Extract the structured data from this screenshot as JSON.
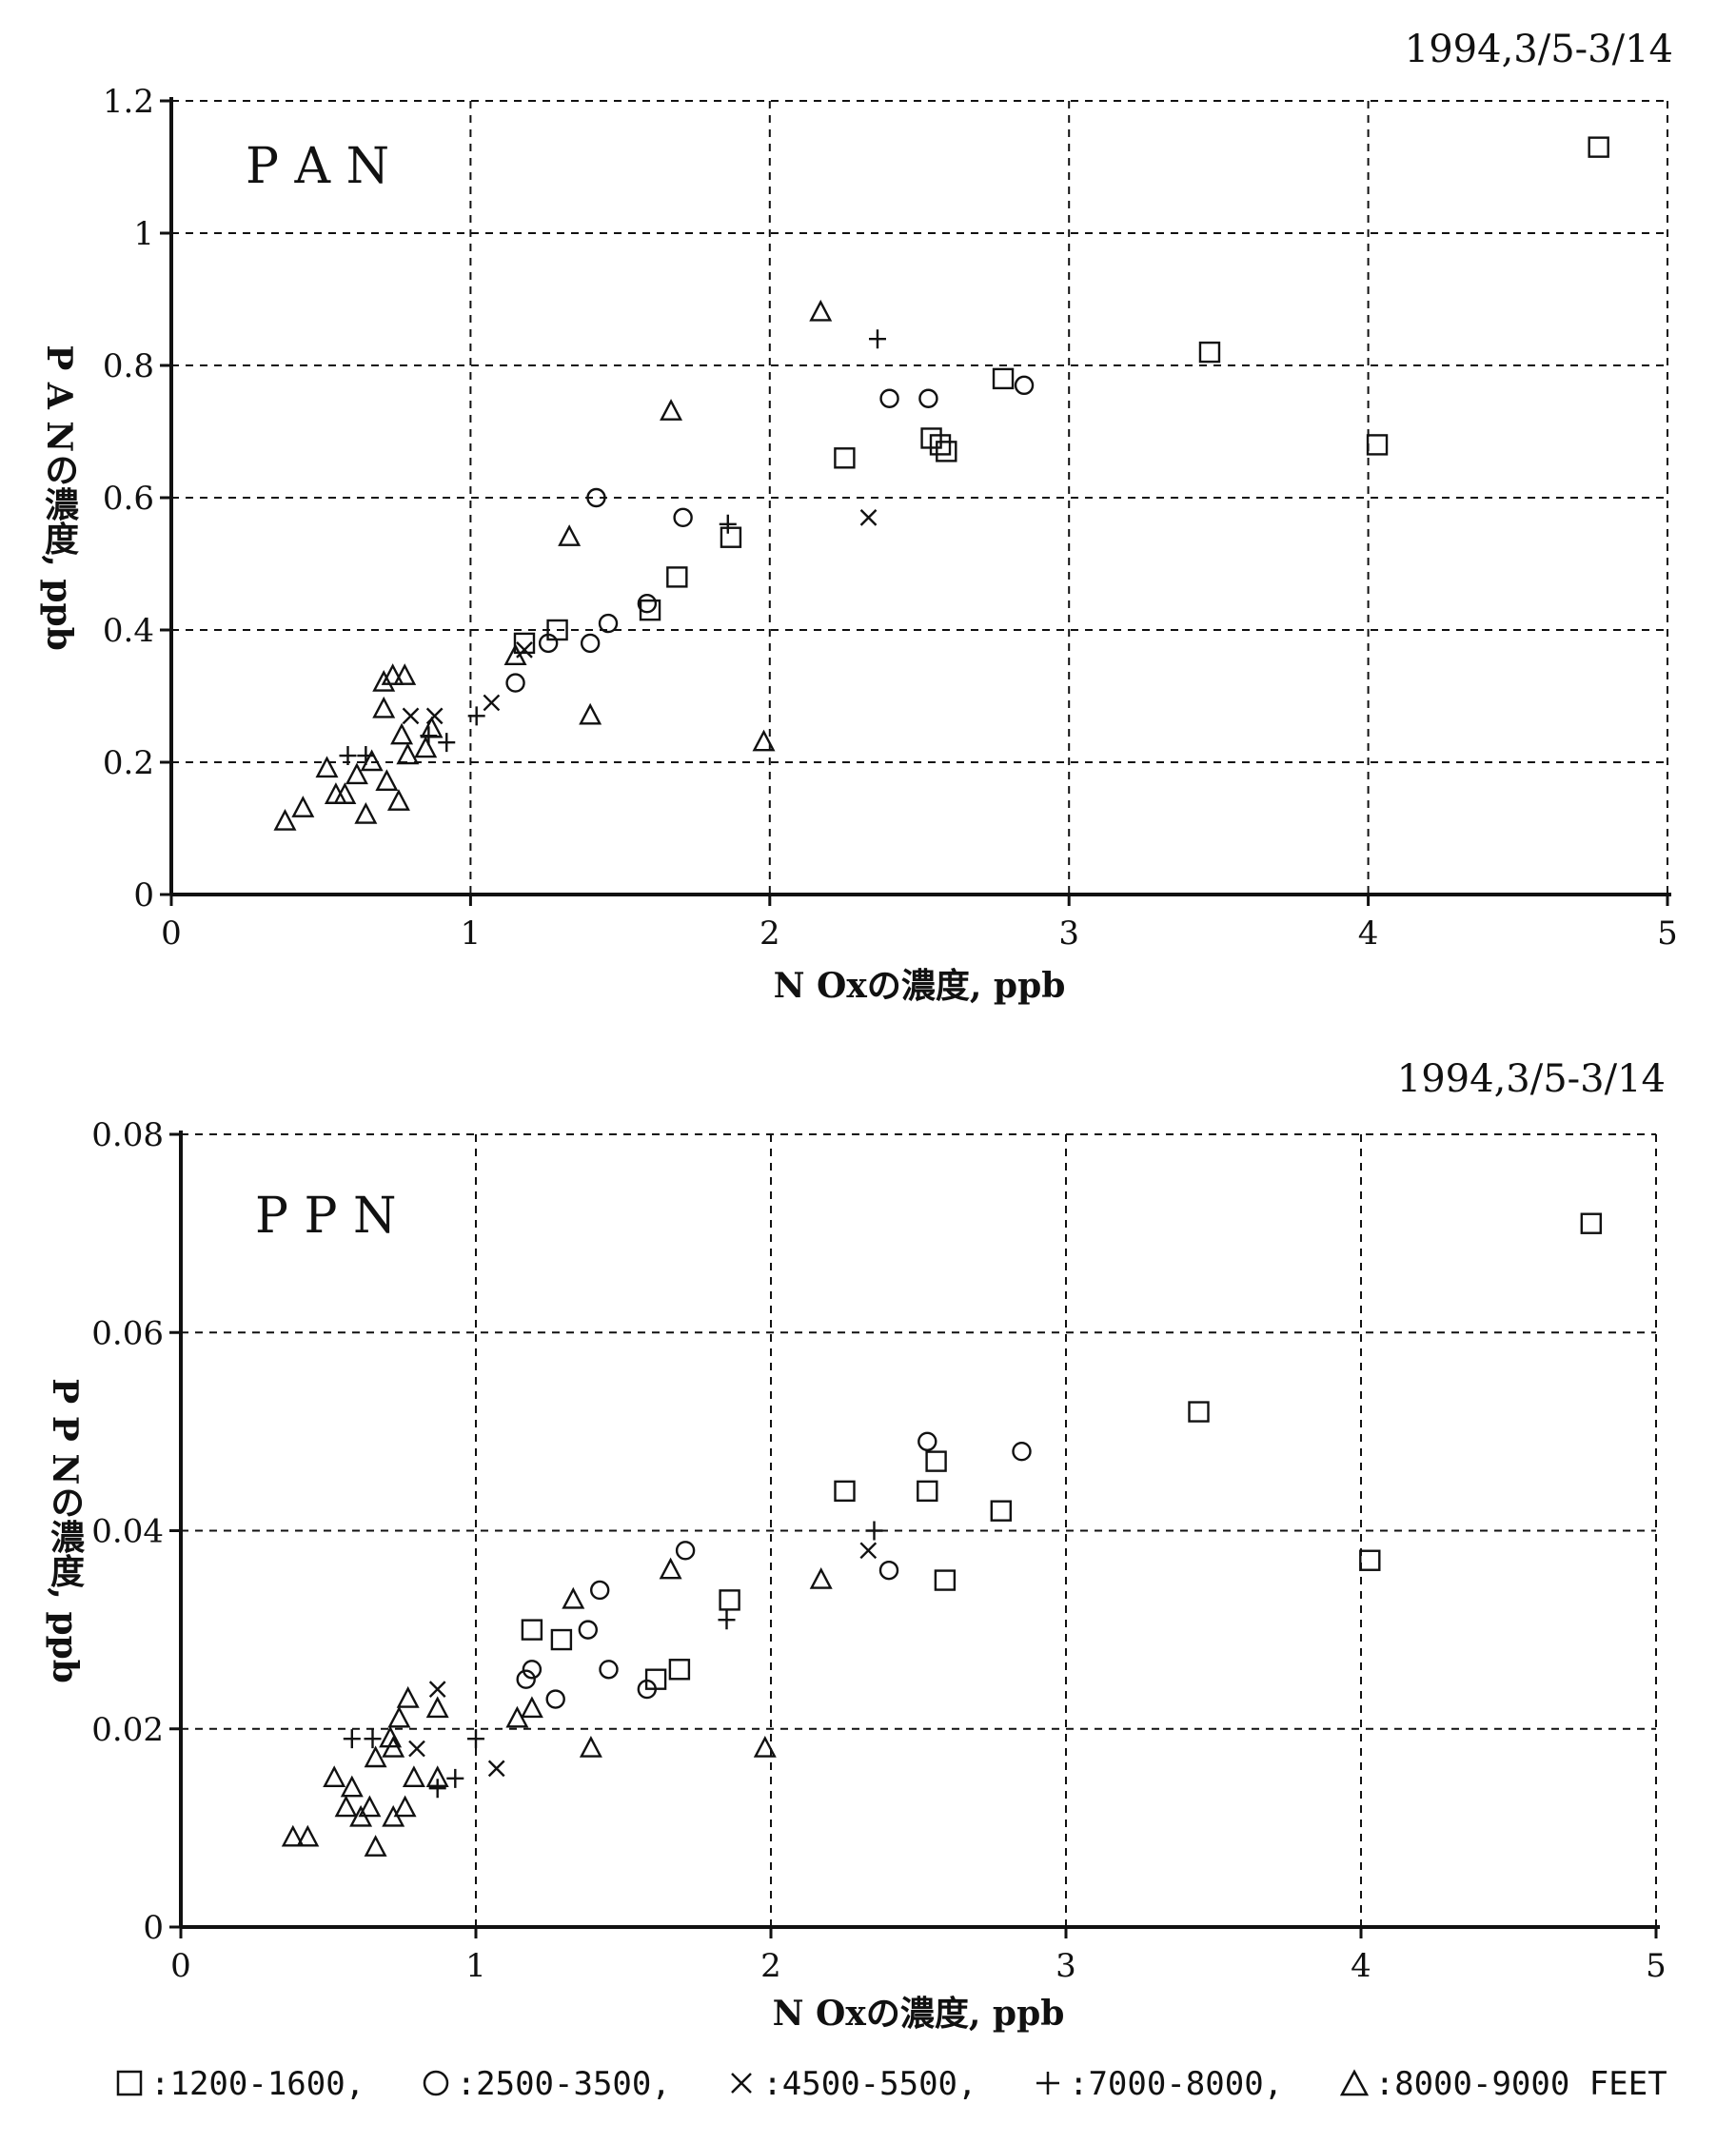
{
  "chart_data": [
    {
      "type": "scatter",
      "panel_label": "P A N",
      "date_label": "1994,3/5-3/14",
      "xlabel": "N Oxの濃度, ppb",
      "ylabel": "P A Nの濃度, ppb",
      "xlim": [
        0,
        5
      ],
      "ylim": [
        0,
        1.2
      ],
      "xticks": [
        "0",
        "1",
        "2",
        "3",
        "4",
        "5"
      ],
      "yticks": [
        "0",
        "0.2",
        "0.4",
        "0.6",
        "0.8",
        "1",
        "1.2"
      ],
      "grid": true,
      "series": [
        {
          "name": "1200-1600",
          "marker": "square",
          "points": [
            [
              1.18,
              0.38
            ],
            [
              1.29,
              0.4
            ],
            [
              1.6,
              0.43
            ],
            [
              1.69,
              0.48
            ],
            [
              1.87,
              0.54
            ],
            [
              2.25,
              0.66
            ],
            [
              2.54,
              0.69
            ],
            [
              2.57,
              0.68
            ],
            [
              2.59,
              0.67
            ],
            [
              2.78,
              0.78
            ],
            [
              3.47,
              0.82
            ],
            [
              4.03,
              0.68
            ],
            [
              4.77,
              1.13
            ]
          ]
        },
        {
          "name": "2500-3500",
          "marker": "circle",
          "points": [
            [
              1.15,
              0.32
            ],
            [
              1.26,
              0.38
            ],
            [
              1.4,
              0.38
            ],
            [
              1.42,
              0.6
            ],
            [
              1.46,
              0.41
            ],
            [
              1.59,
              0.44
            ],
            [
              1.71,
              0.57
            ],
            [
              2.4,
              0.75
            ],
            [
              2.53,
              0.75
            ],
            [
              2.85,
              0.77
            ]
          ]
        },
        {
          "name": "4500-5500",
          "marker": "cross",
          "points": [
            [
              0.8,
              0.27
            ],
            [
              0.88,
              0.27
            ],
            [
              1.07,
              0.29
            ],
            [
              1.18,
              0.37
            ],
            [
              2.33,
              0.57
            ]
          ]
        },
        {
          "name": "7000-8000",
          "marker": "plus",
          "points": [
            [
              0.59,
              0.21
            ],
            [
              0.65,
              0.21
            ],
            [
              0.86,
              0.24
            ],
            [
              0.92,
              0.23
            ],
            [
              1.02,
              0.27
            ],
            [
              1.86,
              0.56
            ],
            [
              2.36,
              0.84
            ]
          ]
        },
        {
          "name": "8000-9000",
          "marker": "triangle",
          "points": [
            [
              0.38,
              0.11
            ],
            [
              0.44,
              0.13
            ],
            [
              0.52,
              0.19
            ],
            [
              0.55,
              0.15
            ],
            [
              0.58,
              0.15
            ],
            [
              0.62,
              0.18
            ],
            [
              0.65,
              0.12
            ],
            [
              0.67,
              0.2
            ],
            [
              0.71,
              0.28
            ],
            [
              0.71,
              0.32
            ],
            [
              0.72,
              0.17
            ],
            [
              0.74,
              0.33
            ],
            [
              0.76,
              0.14
            ],
            [
              0.77,
              0.24
            ],
            [
              0.78,
              0.33
            ],
            [
              0.79,
              0.21
            ],
            [
              0.85,
              0.22
            ],
            [
              0.87,
              0.25
            ],
            [
              1.15,
              0.36
            ],
            [
              1.33,
              0.54
            ],
            [
              1.4,
              0.27
            ],
            [
              1.67,
              0.73
            ],
            [
              1.98,
              0.23
            ],
            [
              2.17,
              0.88
            ]
          ]
        }
      ]
    },
    {
      "type": "scatter",
      "panel_label": "P P N",
      "date_label": "1994,3/5-3/14",
      "xlabel": "N Oxの濃度, ppb",
      "ylabel": "P P Nの濃度, ppb",
      "xlim": [
        0,
        5
      ],
      "ylim": [
        0,
        0.08
      ],
      "xticks": [
        "0",
        "1",
        "2",
        "3",
        "4",
        "5"
      ],
      "yticks": [
        "0",
        "0.02",
        "0.04",
        "0.06",
        "0.08"
      ],
      "grid": true,
      "series": [
        {
          "name": "1200-1600",
          "marker": "square",
          "points": [
            [
              1.19,
              0.03
            ],
            [
              1.29,
              0.029
            ],
            [
              1.61,
              0.025
            ],
            [
              1.69,
              0.026
            ],
            [
              1.86,
              0.033
            ],
            [
              2.25,
              0.044
            ],
            [
              2.53,
              0.044
            ],
            [
              2.56,
              0.047
            ],
            [
              2.59,
              0.035
            ],
            [
              2.78,
              0.042
            ],
            [
              3.45,
              0.052
            ],
            [
              4.03,
              0.037
            ],
            [
              4.78,
              0.071
            ]
          ]
        },
        {
          "name": "2500-3500",
          "marker": "circle",
          "points": [
            [
              1.17,
              0.025
            ],
            [
              1.19,
              0.026
            ],
            [
              1.27,
              0.023
            ],
            [
              1.38,
              0.03
            ],
            [
              1.42,
              0.034
            ],
            [
              1.45,
              0.026
            ],
            [
              1.58,
              0.024
            ],
            [
              1.71,
              0.038
            ],
            [
              2.4,
              0.036
            ],
            [
              2.53,
              0.049
            ],
            [
              2.85,
              0.048
            ]
          ]
        },
        {
          "name": "4500-5500",
          "marker": "cross",
          "points": [
            [
              0.8,
              0.018
            ],
            [
              0.87,
              0.024
            ],
            [
              1.07,
              0.016
            ],
            [
              2.33,
              0.038
            ]
          ]
        },
        {
          "name": "7000-8000",
          "marker": "plus",
          "points": [
            [
              0.58,
              0.019
            ],
            [
              0.65,
              0.019
            ],
            [
              0.87,
              0.014
            ],
            [
              0.93,
              0.015
            ],
            [
              1.0,
              0.019
            ],
            [
              1.85,
              0.031
            ],
            [
              2.35,
              0.04
            ]
          ]
        },
        {
          "name": "8000-9000",
          "marker": "triangle",
          "points": [
            [
              0.38,
              0.009
            ],
            [
              0.43,
              0.009
            ],
            [
              0.52,
              0.015
            ],
            [
              0.56,
              0.012
            ],
            [
              0.58,
              0.014
            ],
            [
              0.61,
              0.011
            ],
            [
              0.64,
              0.012
            ],
            [
              0.66,
              0.017
            ],
            [
              0.66,
              0.008
            ],
            [
              0.71,
              0.019
            ],
            [
              0.72,
              0.018
            ],
            [
              0.72,
              0.011
            ],
            [
              0.74,
              0.021
            ],
            [
              0.76,
              0.012
            ],
            [
              0.77,
              0.023
            ],
            [
              0.79,
              0.015
            ],
            [
              0.87,
              0.022
            ],
            [
              0.87,
              0.015
            ],
            [
              1.14,
              0.021
            ],
            [
              1.19,
              0.022
            ],
            [
              1.33,
              0.033
            ],
            [
              1.39,
              0.018
            ],
            [
              1.66,
              0.036
            ],
            [
              1.98,
              0.018
            ],
            [
              2.17,
              0.035
            ]
          ]
        }
      ]
    }
  ],
  "legend": [
    {
      "marker": "square",
      "label": ":1200-1600,"
    },
    {
      "marker": "circle",
      "label": ":2500-3500,"
    },
    {
      "marker": "cross",
      "label": ":4500-5500,"
    },
    {
      "marker": "plus",
      "label": ":7000-8000,"
    },
    {
      "marker": "triangle",
      "label": ":8000-9000 FEET"
    }
  ]
}
